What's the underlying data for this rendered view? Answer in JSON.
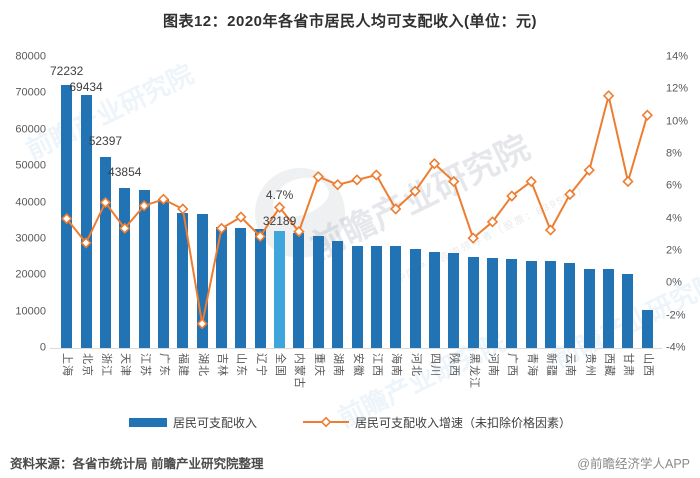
{
  "title": "图表12：2020年各省市居民人均可支配收入(单位：元)",
  "chart_data": {
    "type": "bar+line",
    "categories": [
      "上海",
      "北京",
      "浙江",
      "天津",
      "江苏",
      "广东",
      "福建",
      "湖北",
      "吉林",
      "山东",
      "辽宁",
      "全国",
      "内蒙古",
      "重庆",
      "湖南",
      "安徽",
      "江西",
      "海南",
      "河北",
      "四川",
      "陕西",
      "黑龙江",
      "河南",
      "广西",
      "青海",
      "新疆",
      "云南",
      "贵州",
      "西藏",
      "甘肃",
      "山西"
    ],
    "series": [
      {
        "name": "居民可支配收入",
        "type": "bar",
        "values": [
          72232,
          69434,
          52397,
          43854,
          43390,
          41029,
          37202,
          36900,
          33300,
          32886,
          32738,
          32189,
          31497,
          30824,
          29380,
          28103,
          28017,
          27904,
          27136,
          26522,
          26226,
          24902,
          24810,
          24562,
          24037,
          23845,
          23295,
          21795,
          21744,
          20335,
          10400
        ]
      },
      {
        "name": "居民可支配收入增速（未扣除价格因素）",
        "type": "line",
        "values": [
          4.0,
          2.5,
          5.0,
          3.4,
          4.8,
          5.2,
          4.6,
          -2.5,
          3.4,
          4.1,
          2.9,
          4.7,
          3.2,
          6.6,
          6.1,
          6.4,
          6.7,
          4.6,
          5.7,
          7.4,
          6.3,
          2.8,
          3.8,
          5.4,
          6.3,
          3.3,
          5.5,
          7.0,
          11.6,
          6.3,
          10.4
        ]
      }
    ],
    "left_axis": {
      "min": 0,
      "max": 80000,
      "ticks": [
        "80000",
        "70000",
        "60000",
        "50000",
        "40000",
        "30000",
        "20000",
        "10000",
        "0"
      ]
    },
    "right_axis": {
      "min": -4,
      "max": 14,
      "ticks": [
        "14%",
        "12%",
        "10%",
        "8%",
        "6%",
        "4%",
        "2%",
        "0%",
        "-2%",
        "-4%"
      ]
    },
    "bar_value_labels": [
      {
        "index": 0,
        "text": "72232",
        "gap": 8
      },
      {
        "index": 1,
        "text": "69434",
        "gap": 2
      },
      {
        "index": 2,
        "text": "52397",
        "gap": 10
      },
      {
        "index": 3,
        "text": "43854",
        "gap": 10
      },
      {
        "index": 11,
        "text": "32189",
        "gap": 4
      }
    ],
    "line_value_labels": [
      {
        "index": 11,
        "text": "4.7%",
        "gap": 6
      }
    ],
    "highlight_index": 11,
    "grid": false,
    "legend_position": "bottom"
  },
  "colors": {
    "bar": "#2173B4",
    "bar_highlight": "#3FA6DC",
    "line": "#ED7D31",
    "marker_fill": "#FFFFFF",
    "axis_text": "#595959",
    "value_label": "#404040",
    "title_text": "#2F2F2F"
  },
  "legend": {
    "bar_label": "居民可支配收入",
    "line_label": "居民可支配收入增速（未扣除价格因素）"
  },
  "footer": {
    "source": "资料来源：各省市统计局 前瞻产业研究院整理",
    "credit": "@前瞻经济学人APP"
  },
  "watermark": {
    "main": "前瞻产业研究院",
    "sub": "中国产业咨询领导者（股票：839599）",
    "corner": "前瞻产业研究院"
  }
}
